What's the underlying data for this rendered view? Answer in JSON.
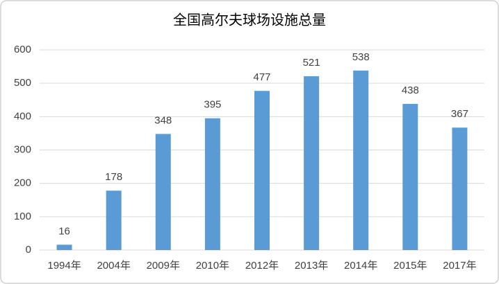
{
  "chart_data": {
    "type": "bar",
    "title": "全国高尔夫球场设施总量",
    "categories": [
      "1994年",
      "2004年",
      "2009年",
      "2010年",
      "2012年",
      "2013年",
      "2014年",
      "2015年",
      "2017年"
    ],
    "values": [
      16,
      178,
      348,
      395,
      477,
      521,
      538,
      438,
      367
    ],
    "color": "#5b9bd5",
    "ylim": [
      0,
      600
    ],
    "yticks": [
      0,
      100,
      200,
      300,
      400,
      500,
      600
    ],
    "grid": true
  }
}
